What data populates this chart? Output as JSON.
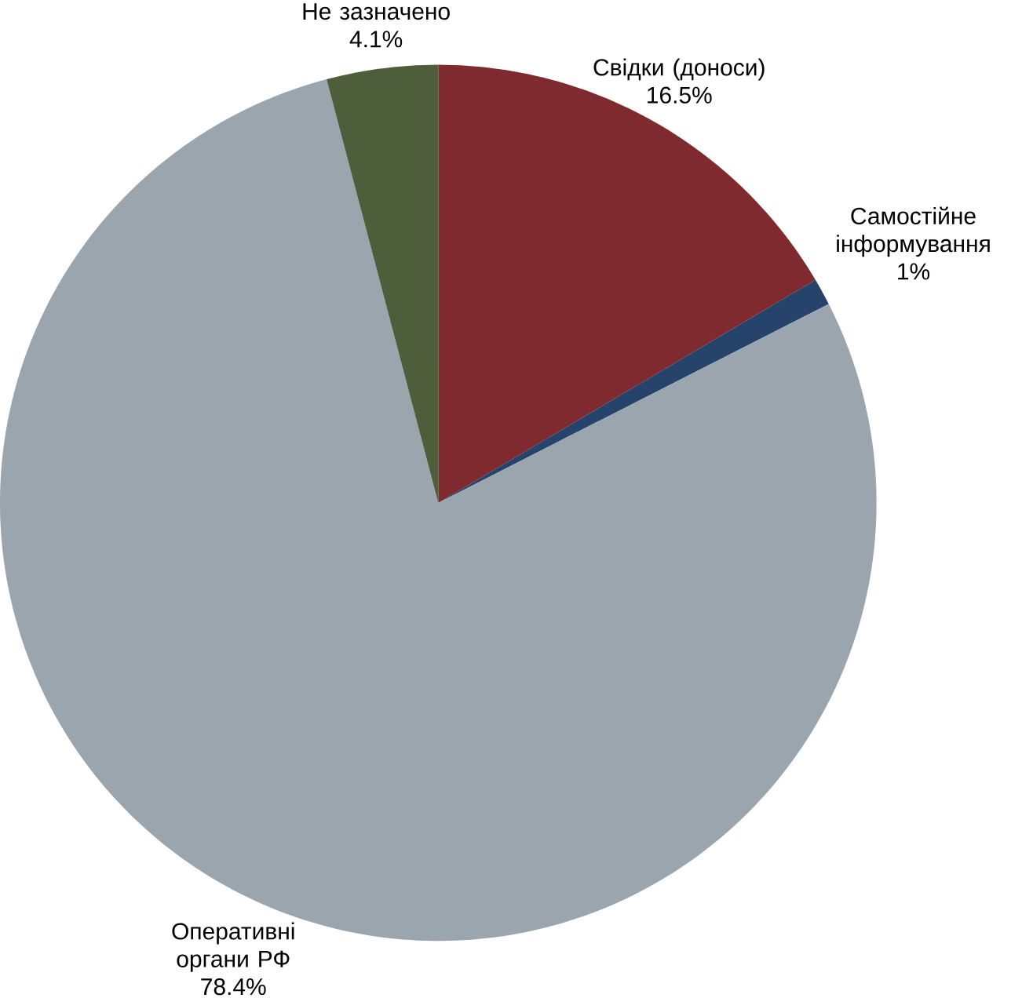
{
  "chart_data": {
    "type": "pie",
    "categories": [
      "Свідки (доноси)",
      "Самостійне інформування",
      "Оперативні органи РФ",
      "Не зазначено"
    ],
    "values": [
      16.5,
      1,
      78.4,
      4.1
    ],
    "value_labels": [
      "16.5%",
      "1%",
      "78.4%",
      "4.1%"
    ],
    "colors": [
      "#7f2a2e",
      "#25436b",
      "#9aa5ad",
      "#4e5e3a"
    ]
  }
}
